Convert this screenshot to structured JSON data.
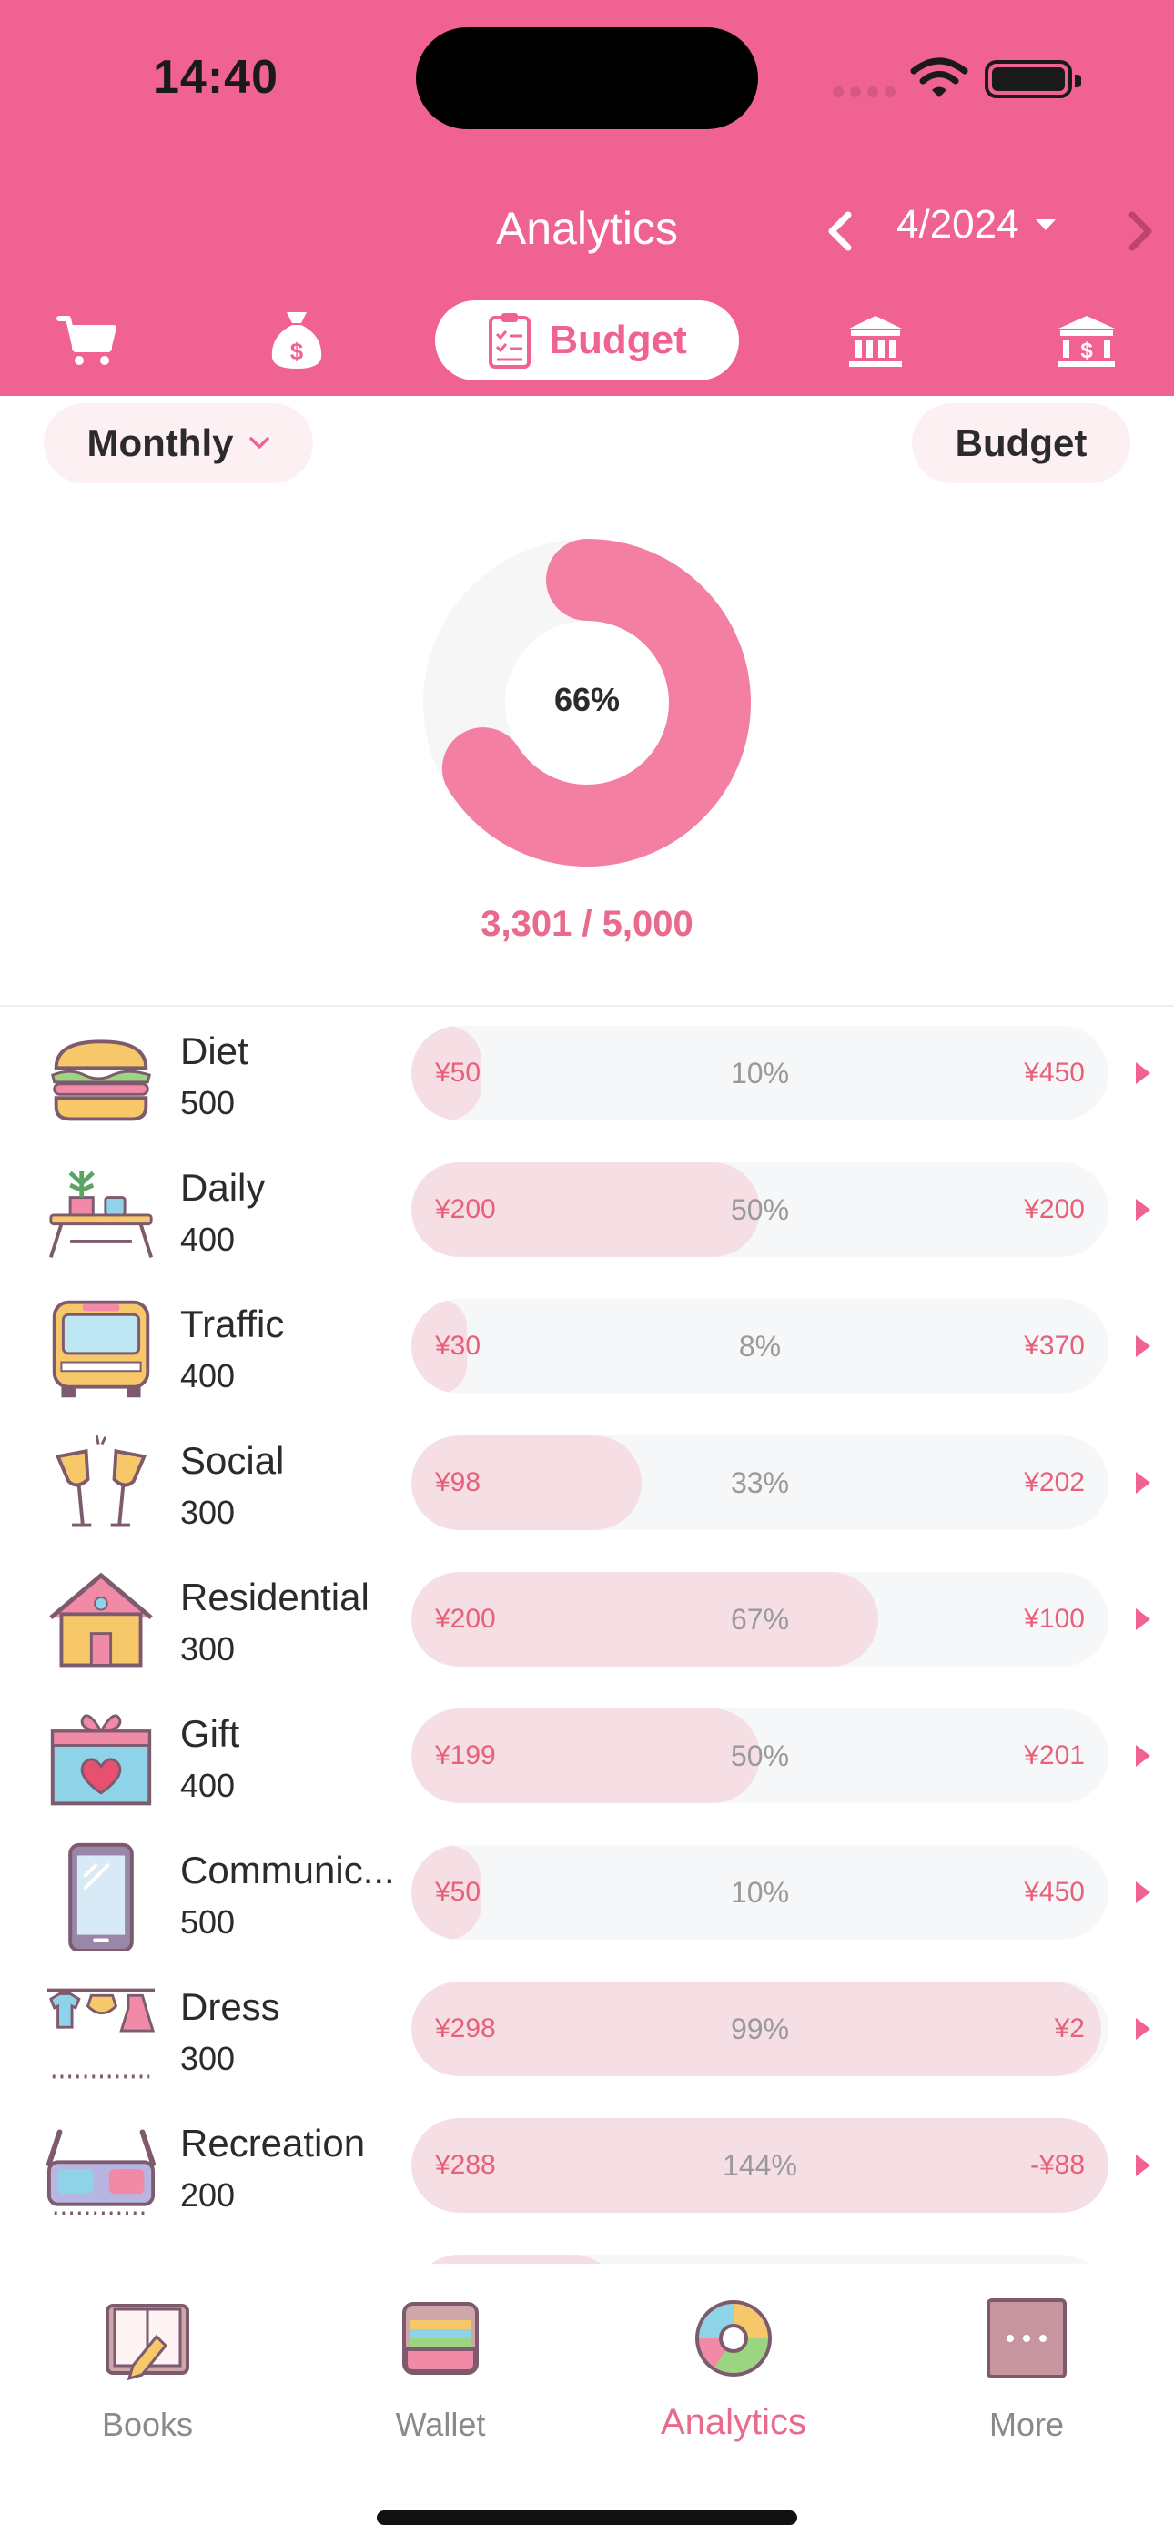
{
  "status": {
    "time": "14:40"
  },
  "header": {
    "title": "Analytics",
    "period": "4/2024",
    "tabs": [
      {
        "icon": "cart-icon",
        "label": ""
      },
      {
        "icon": "money-bag-icon",
        "label": ""
      },
      {
        "icon": "clipboard-icon",
        "label": "Budget"
      },
      {
        "icon": "bank-icon",
        "label": ""
      },
      {
        "icon": "bank-dollar-icon",
        "label": ""
      }
    ]
  },
  "controls": {
    "period_type": "Monthly",
    "mode": "Budget"
  },
  "summary": {
    "percent_label": "66%",
    "percent": 0.66,
    "total": "3,301 / 5,000"
  },
  "categories": [
    {
      "name": "Diet",
      "budget": "500",
      "spent": "¥50",
      "pct": "10%",
      "fill": 0.1,
      "left": "¥450",
      "icon": "burger-icon"
    },
    {
      "name": "Daily",
      "budget": "400",
      "spent": "¥200",
      "pct": "50%",
      "fill": 0.5,
      "left": "¥200",
      "icon": "table-plant-icon"
    },
    {
      "name": "Traffic",
      "budget": "400",
      "spent": "¥30",
      "pct": "8%",
      "fill": 0.08,
      "left": "¥370",
      "icon": "bus-icon"
    },
    {
      "name": "Social",
      "budget": "300",
      "spent": "¥98",
      "pct": "33%",
      "fill": 0.33,
      "left": "¥202",
      "icon": "champagne-glasses-icon"
    },
    {
      "name": "Residential",
      "budget": "300",
      "spent": "¥200",
      "pct": "67%",
      "fill": 0.67,
      "left": "¥100",
      "icon": "house-icon"
    },
    {
      "name": "Gift",
      "budget": "400",
      "spent": "¥199",
      "pct": "50%",
      "fill": 0.5,
      "left": "¥201",
      "icon": "gift-box-icon"
    },
    {
      "name": "Communic...",
      "budget": "500",
      "spent": "¥50",
      "pct": "10%",
      "fill": 0.1,
      "left": "¥450",
      "icon": "smartphone-icon"
    },
    {
      "name": "Dress",
      "budget": "300",
      "spent": "¥298",
      "pct": "99%",
      "fill": 0.99,
      "left": "¥2",
      "icon": "clothesline-icon"
    },
    {
      "name": "Recreation",
      "budget": "200",
      "spent": "¥288",
      "pct": "144%",
      "fill": 1.0,
      "left": "-¥88",
      "icon": "3d-glasses-icon"
    }
  ],
  "nav": [
    {
      "label": "Books",
      "icon": "book-icon"
    },
    {
      "label": "Wallet",
      "icon": "wallet-icon"
    },
    {
      "label": "Analytics",
      "icon": "pie-chart-icon",
      "active": true
    },
    {
      "label": "More",
      "icon": "more-icon"
    }
  ],
  "colors": {
    "primary": "#f06292",
    "accent_text": "#e86a8d",
    "bar_fill": "#f5dfe5",
    "bar_track": "#f6f7f8"
  }
}
